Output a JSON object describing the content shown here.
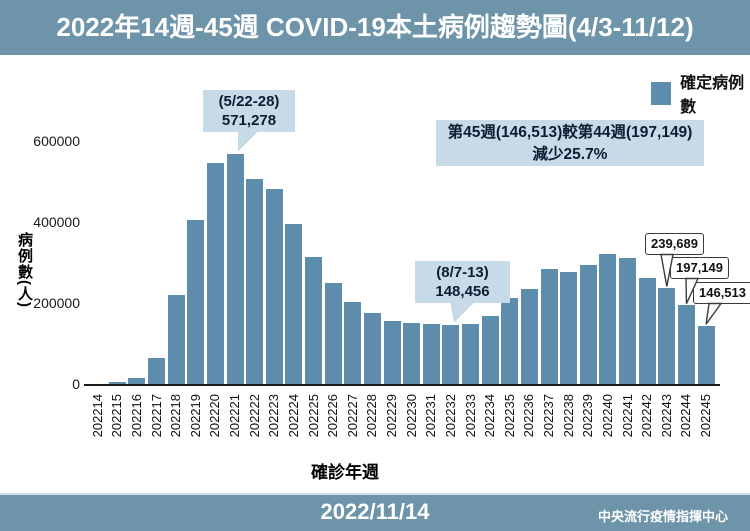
{
  "header": {
    "title": "2022年14週-45週 COVID-19本土病例趨勢圖(4/3-11/12)"
  },
  "legend": {
    "label": "確定病例數",
    "color": "#5d8cad"
  },
  "chart_data": {
    "type": "bar",
    "title": "2022年14週-45週 COVID-19本土病例趨勢圖(4/3-11/12)",
    "xlabel": "確診年週",
    "ylabel": "病例數(人)",
    "ylim": [
      0,
      620000
    ],
    "grid": false,
    "legend_position": "top-right",
    "series_name": "確定病例數",
    "yticks": [
      0,
      200000,
      400000,
      600000
    ],
    "ytick_labels": [
      "0",
      "200000",
      "400000",
      "600000"
    ],
    "categories": [
      "202214",
      "202215",
      "202216",
      "202217",
      "202218",
      "202219",
      "202220",
      "202221",
      "202222",
      "202223",
      "202224",
      "202225",
      "202226",
      "202227",
      "202228",
      "202229",
      "202230",
      "202231",
      "202232",
      "202233",
      "202234",
      "202235",
      "202236",
      "202237",
      "202238",
      "202239",
      "202240",
      "202241",
      "202242",
      "202243",
      "202244",
      "202245"
    ],
    "values": [
      2000,
      8000,
      18000,
      67000,
      222000,
      408000,
      549000,
      571278,
      508000,
      483000,
      397000,
      316000,
      252000,
      206000,
      179000,
      158000,
      152000,
      149500,
      148456,
      150500,
      170000,
      216000,
      238000,
      287000,
      279000,
      296000,
      324000,
      313000,
      263000,
      239689,
      197149,
      146513
    ],
    "annotations": {
      "peak": {
        "line1": "(5/22-28)",
        "line2": "571,278",
        "week": "202221"
      },
      "trough": {
        "line1": "(8/7-13)",
        "line2": "148,456",
        "week": "202232"
      },
      "comparison": {
        "line1": "第45週(146,513)較第44週(197,149)",
        "line2": "減少25.7%"
      }
    },
    "callouts": [
      {
        "label": "239,689",
        "week": "202243"
      },
      {
        "label": "197,149",
        "week": "202244"
      },
      {
        "label": "146,513",
        "week": "202245"
      }
    ]
  },
  "footer": {
    "date": "2022/11/14",
    "org": "中央流行疫情指揮中心"
  }
}
